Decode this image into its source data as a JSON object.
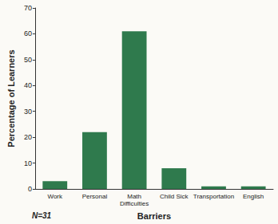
{
  "chart_data": {
    "type": "bar",
    "categories": [
      "Work",
      "Personal",
      "Math Difficulties",
      "Child Sick",
      "Transportation",
      "English"
    ],
    "values": [
      3,
      22,
      61,
      8,
      1,
      1
    ],
    "color": "#2f7a4d",
    "x_label": "Barriers",
    "y_label": "Percentage of Learners",
    "ylim": [
      0,
      70
    ],
    "yticks": [
      0,
      10,
      20,
      30,
      40,
      50,
      60,
      70
    ],
    "annotations": [
      "N=31"
    ],
    "grid": false
  }
}
